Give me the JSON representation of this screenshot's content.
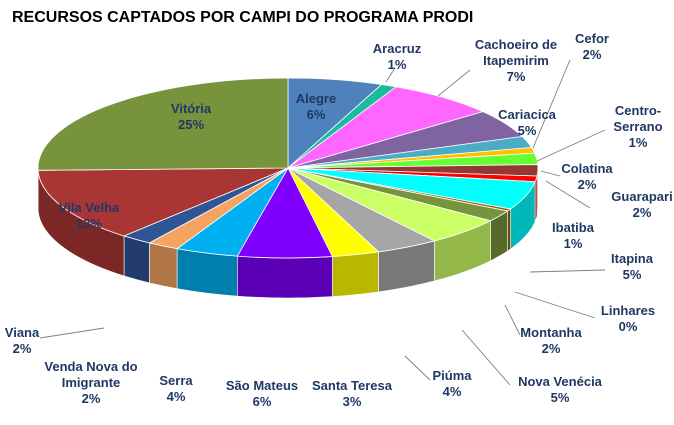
{
  "chart_data": {
    "type": "pie",
    "title": "RECURSOS CAPTADOS POR CAMPI DO PROGRAMA PRODI",
    "slices": [
      {
        "name": "Alegre",
        "percent": "6%",
        "value": 6,
        "color": "#4f81bd"
      },
      {
        "name": "Aracruz",
        "percent": "1%",
        "value": 1,
        "color": "#1abc9c"
      },
      {
        "name": "Cachoeiro de Itapemirim",
        "percent": "7%",
        "value": 7,
        "color": "#ff66ff"
      },
      {
        "name": "Cariacica",
        "percent": "5%",
        "value": 5,
        "color": "#8064a2"
      },
      {
        "name": "Cefor",
        "percent": "2%",
        "value": 2,
        "color": "#4bacc6"
      },
      {
        "name": "Centro-Serrano",
        "percent": "1%",
        "value": 1,
        "color": "#ffc000"
      },
      {
        "name": "Colatina",
        "percent": "2%",
        "value": 2,
        "color": "#66ff33"
      },
      {
        "name": "Guarapari",
        "percent": "2%",
        "value": 2,
        "color": "#953735"
      },
      {
        "name": "Ibatiba",
        "percent": "1%",
        "value": 1,
        "color": "#ff0000"
      },
      {
        "name": "Itapina",
        "percent": "5%",
        "value": 5,
        "color": "#00ffff"
      },
      {
        "name": "Linhares",
        "percent": "0%",
        "value": 0.4,
        "color": "#ffff00"
      },
      {
        "name": "Montanha",
        "percent": "2%",
        "value": 2,
        "color": "#cc8800"
      },
      {
        "name": "Nova Venécia",
        "percent": "5%",
        "value": 5,
        "color": "#9bbb59"
      },
      {
        "name": "Piúma",
        "percent": "4%",
        "value": 4,
        "color": "#ccff66"
      },
      {
        "name": "Santa Teresa",
        "percent": "3%",
        "value": 3,
        "color": "#a6a6a6"
      },
      {
        "name": "São Mateus",
        "percent": "6%",
        "value": 6,
        "color": "#ffff00"
      },
      {
        "name": "Serra",
        "percent": "4%",
        "value": 4,
        "color": "#8000ff"
      },
      {
        "name": "Venda Nova do Imigrante",
        "percent": "2%",
        "value": 2,
        "color": "#00b0f0"
      },
      {
        "name": "Viana",
        "percent": "2%",
        "value": 2,
        "color": "#f4a460"
      },
      {
        "name": "Vila Velha",
        "percent": "13%",
        "value": 13,
        "color": "#2f5597"
      },
      {
        "name": "Vitória",
        "percent": "25%",
        "value": 25,
        "color": "#a93634"
      },
      {
        "name": "",
        "percent": "",
        "value": 0,
        "color": "#77933c"
      }
    ]
  }
}
